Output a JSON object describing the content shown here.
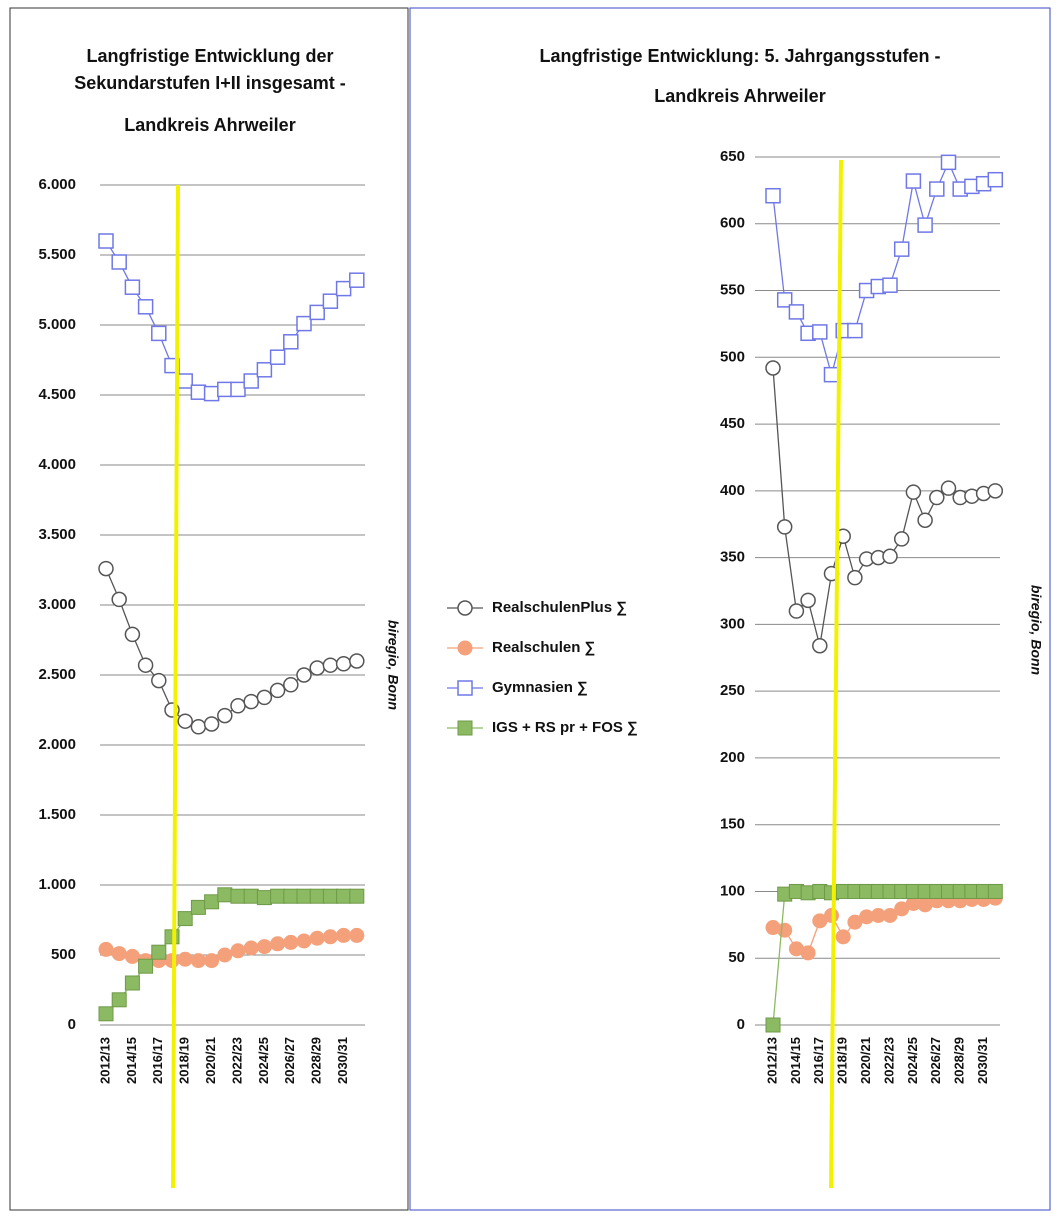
{
  "chart_data": [
    {
      "type": "line",
      "title": [
        "Langfristige Entwicklung der",
        "Sekundarstufen I+II insgesamt -",
        "Landkreis Ahrweiler"
      ],
      "source": "biregio, Bonn",
      "categories": [
        "2012/13",
        null,
        "2014/15",
        null,
        "2016/17",
        null,
        "2018/19",
        null,
        "2020/21",
        null,
        "2022/23",
        null,
        "2024/25",
        null,
        "2026/27",
        null,
        "2028/29",
        null,
        "2030/31",
        null
      ],
      "ylim": [
        0,
        6000
      ],
      "yticks": [
        0,
        500,
        {
          "value": 1000,
          "label": "1.000"
        },
        {
          "value": 1500,
          "label": "1.500"
        },
        {
          "value": 2000,
          "label": "2.000"
        },
        {
          "value": 2500,
          "label": "2.500"
        },
        {
          "value": 3000,
          "label": "3.000"
        },
        {
          "value": 3500,
          "label": "3.500"
        },
        {
          "value": 4000,
          "label": "4.000"
        },
        {
          "value": 4500,
          "label": "4.500"
        },
        {
          "value": 5000,
          "label": "5.000"
        },
        {
          "value": 5500,
          "label": "5.500"
        },
        {
          "value": 6000,
          "label": "6.000"
        }
      ],
      "grid": true,
      "series": [
        {
          "color": "#555555",
          "marker": "circle",
          "filled": false,
          "values": [
            3260,
            3040,
            2790,
            2570,
            2460,
            2250,
            2170,
            2130,
            2150,
            2210,
            2280,
            2310,
            2340,
            2390,
            2430,
            2500,
            2550,
            2570,
            2580,
            2600
          ]
        },
        {
          "color": "#f4a07a",
          "marker": "circle",
          "filled": true,
          "values": [
            540,
            510,
            490,
            460,
            460,
            460,
            470,
            460,
            460,
            500,
            530,
            550,
            560,
            580,
            590,
            600,
            620,
            630,
            640,
            640
          ]
        },
        {
          "color": "#6f78e6",
          "marker": "square",
          "filled": false,
          "values": [
            5600,
            5450,
            5270,
            5130,
            4940,
            4710,
            4600,
            4520,
            4510,
            4540,
            4540,
            4600,
            4680,
            4770,
            4880,
            5010,
            5090,
            5170,
            5260,
            5320
          ]
        },
        {
          "color": "#8cba62",
          "marker": "square",
          "filled": true,
          "values": [
            80,
            180,
            300,
            420,
            520,
            630,
            760,
            840,
            880,
            930,
            920,
            920,
            910,
            920,
            920,
            920,
            920,
            920,
            920,
            920
          ]
        }
      ]
    },
    {
      "type": "line",
      "title": [
        "Langfristige Entwicklung: 5. Jahrgangsstufen -",
        "Landkreis Ahrweiler"
      ],
      "source": "biregio, Bonn",
      "categories": [
        "2012/13",
        null,
        "2014/15",
        null,
        "2016/17",
        null,
        "2018/19",
        null,
        "2020/21",
        null,
        "2022/23",
        null,
        "2024/25",
        null,
        "2026/27",
        null,
        "2028/29",
        null,
        "2030/31",
        null
      ],
      "ylim": [
        0,
        650
      ],
      "yticks": [
        0,
        50,
        100,
        150,
        200,
        250,
        300,
        350,
        400,
        450,
        500,
        550,
        600,
        650
      ],
      "grid": true,
      "legend": "left",
      "series": [
        {
          "name": "RealschulenPlus ∑",
          "color": "#555555",
          "marker": "circle",
          "filled": false,
          "values": [
            492,
            373,
            310,
            318,
            284,
            338,
            366,
            335,
            349,
            350,
            351,
            364,
            399,
            378,
            395,
            402,
            395,
            396,
            398,
            400
          ]
        },
        {
          "name": "Realschulen ∑",
          "color": "#f4a07a",
          "marker": "circle",
          "filled": true,
          "values": [
            73,
            71,
            57,
            54,
            78,
            82,
            66,
            77,
            81,
            82,
            82,
            87,
            91,
            90,
            93,
            93,
            93,
            94,
            94,
            95
          ]
        },
        {
          "name": "Gymnasien ∑",
          "color": "#6f78e6",
          "marker": "square",
          "filled": false,
          "values": [
            621,
            543,
            534,
            518,
            519,
            487,
            520,
            520,
            550,
            553,
            554,
            581,
            632,
            599,
            626,
            646,
            626,
            628,
            630,
            633
          ]
        },
        {
          "name": "IGS + RS pr + FOS ∑",
          "color": "#8cba62",
          "marker": "square",
          "filled": true,
          "values": [
            0,
            98,
            100,
            99,
            100,
            99,
            100,
            100,
            100,
            100,
            100,
            100,
            100,
            100,
            100,
            100,
            100,
            100,
            100,
            100
          ]
        }
      ]
    }
  ]
}
